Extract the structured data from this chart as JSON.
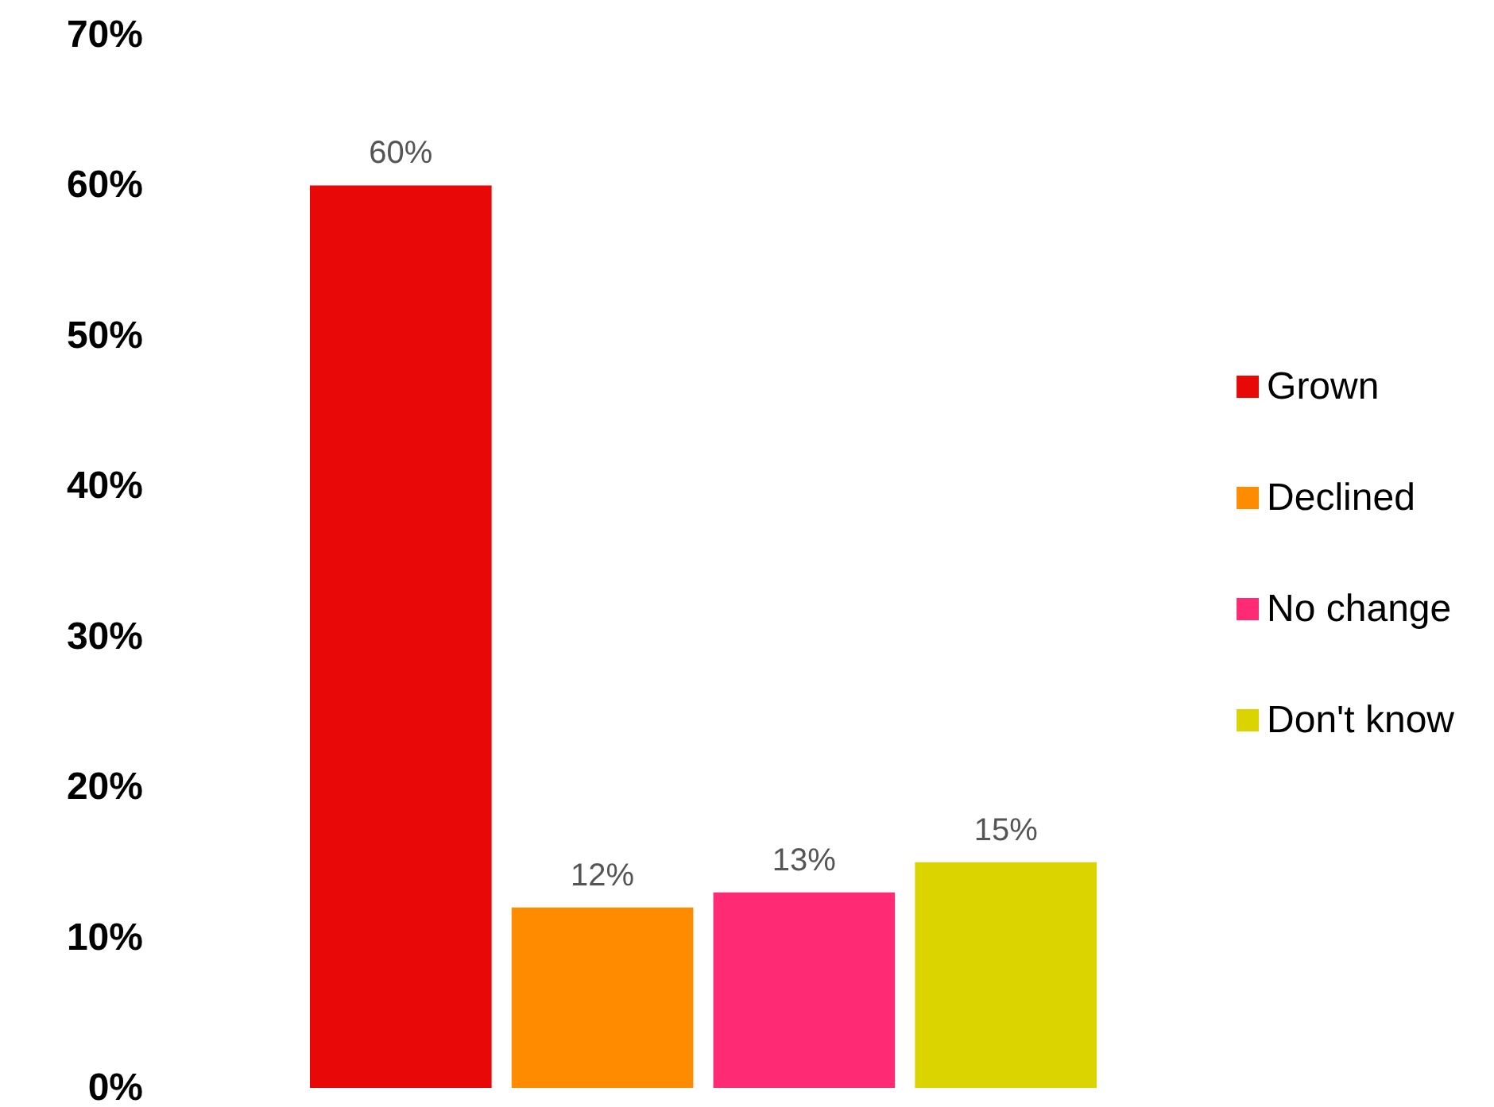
{
  "chart_data": {
    "type": "bar",
    "categories": [
      null
    ],
    "series": [
      {
        "name": "Grown",
        "color": "#e80808",
        "values": [
          60
        ],
        "value_labels": [
          "60%"
        ]
      },
      {
        "name": "Declined",
        "color": "#ff8c00",
        "values": [
          12
        ],
        "value_labels": [
          "12%"
        ]
      },
      {
        "name": "No change",
        "color": "#ff2a73",
        "values": [
          13
        ],
        "value_labels": [
          "13%"
        ]
      },
      {
        "name": "Don't know",
        "color": "#dcd400",
        "values": [
          15
        ],
        "value_labels": [
          "15%"
        ]
      }
    ],
    "ylim": [
      0,
      70
    ],
    "yticks": [
      {
        "value": 0,
        "label": "0%"
      },
      {
        "value": 10,
        "label": "10%"
      },
      {
        "value": 20,
        "label": "20%"
      },
      {
        "value": 30,
        "label": "30%"
      },
      {
        "value": 40,
        "label": "40%"
      },
      {
        "value": 50,
        "label": "50%"
      },
      {
        "value": 60,
        "label": "60%"
      },
      {
        "value": 70,
        "label": "70%"
      }
    ],
    "grid": false,
    "legend": "right"
  }
}
